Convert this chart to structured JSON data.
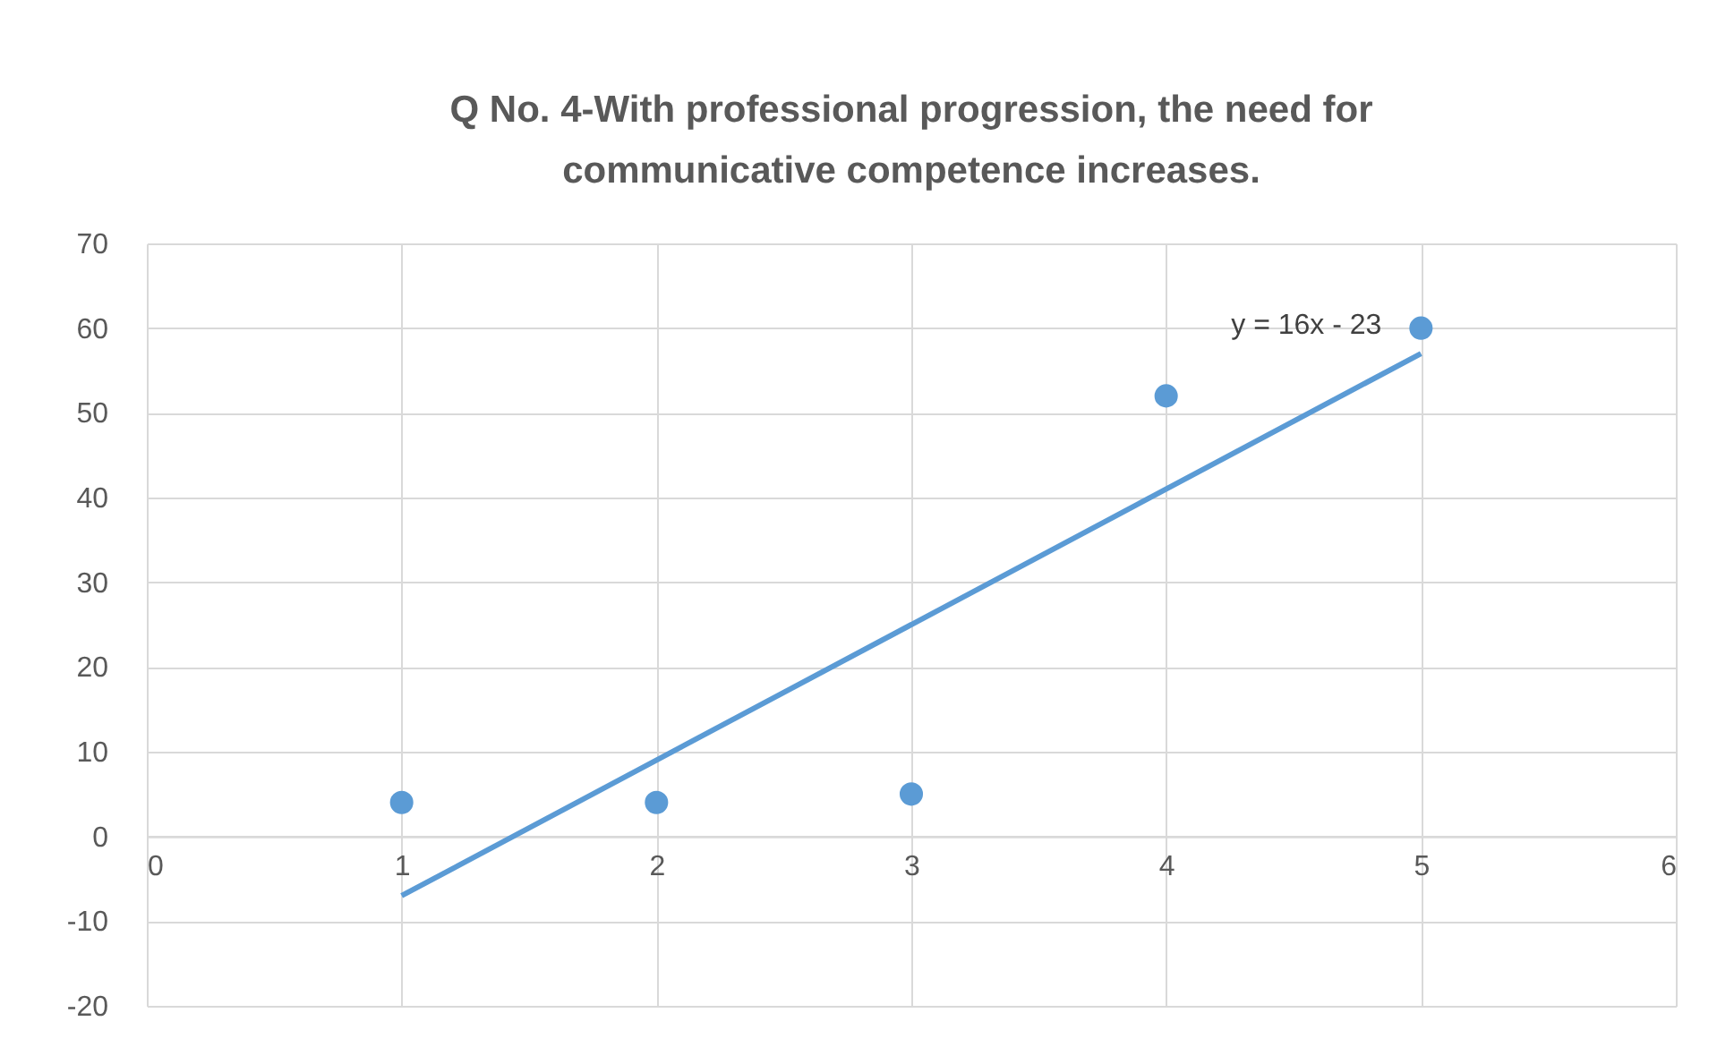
{
  "chart_data": {
    "type": "scatter",
    "title": "Q No. 4-With professional progression, the need for communicative competence increases.",
    "x": [
      1,
      2,
      3,
      4,
      5
    ],
    "series": [
      {
        "color": "#5b9bd5",
        "marker": "circle",
        "values": [
          4,
          4,
          5,
          52,
          60
        ]
      },
      {
        "type": "line",
        "color": "#5b9bd5",
        "marker": "none",
        "line_style": "solid",
        "x": [
          1,
          5
        ],
        "values": [
          -7,
          57
        ]
      }
    ],
    "annotations": [
      "y = 16x - 23"
    ],
    "xlim": [
      0,
      6
    ],
    "xticks": [
      0,
      1,
      2,
      3,
      4,
      5,
      6
    ],
    "ylim": [
      -20,
      70
    ],
    "yticks": [
      -20,
      -10,
      0,
      10,
      20,
      30,
      40,
      50,
      60,
      70
    ],
    "grid": true
  }
}
